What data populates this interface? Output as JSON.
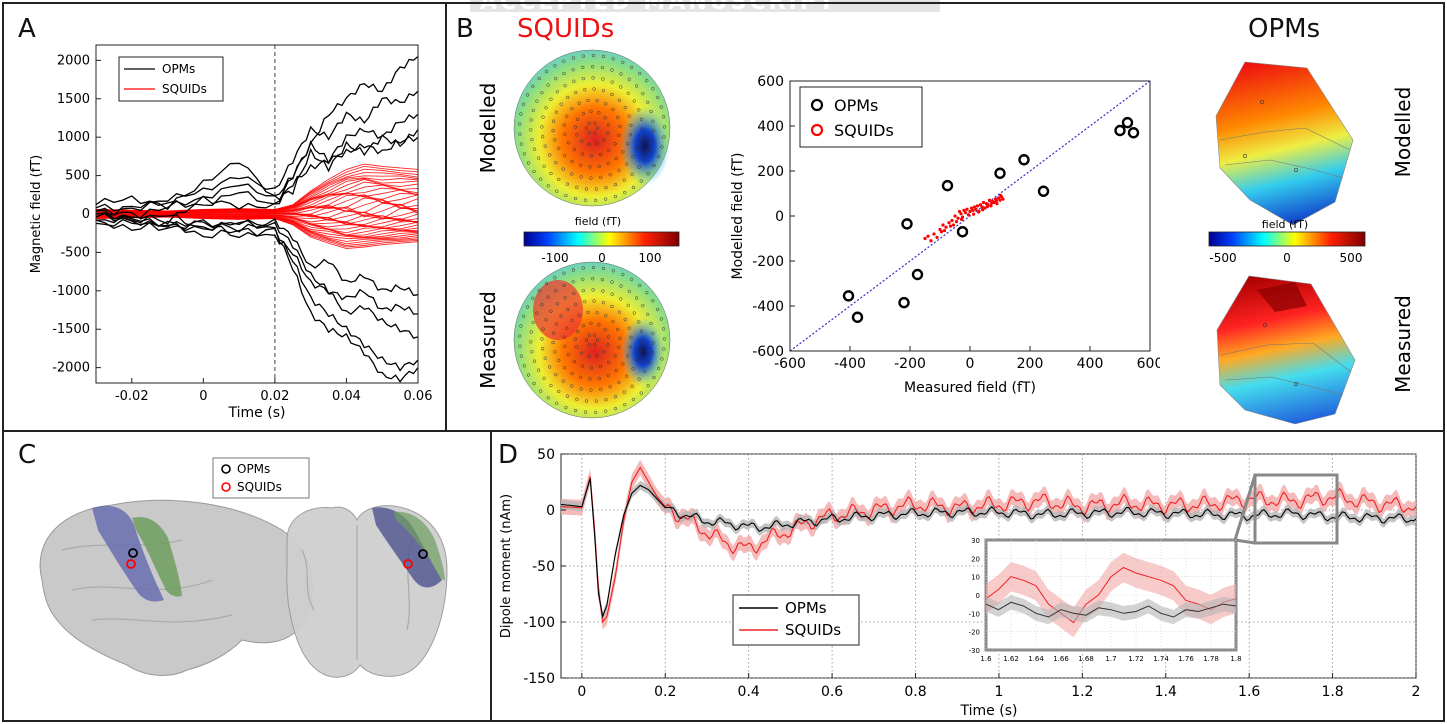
{
  "watermark": "ACCEPTED MANUSCRIPT",
  "panels": {
    "A": "A",
    "B": "B",
    "C": "C",
    "D": "D"
  },
  "colors": {
    "opm": "#000000",
    "squid": "#ff0000",
    "identity": "#2b2bd6",
    "ci_squid": "#f3a9a9",
    "ci_opm": "#b5b5b5"
  },
  "chart_data": [
    {
      "id": "A",
      "type": "line",
      "xlabel": "Time (s)",
      "ylabel": "Magnetic field (fT)",
      "xlim": [
        -0.03,
        0.06
      ],
      "ylim": [
        -2200,
        2200
      ],
      "xticks": [
        -0.02,
        0,
        0.02,
        0.04,
        0.06
      ],
      "xtick_labels": [
        "-0.02",
        "0",
        "0.02",
        "0.04",
        "0.06"
      ],
      "yticks": [
        -2000,
        -1500,
        -1000,
        -500,
        0,
        500,
        1000,
        1500,
        2000
      ],
      "ytick_labels": [
        "-2000",
        "-1500",
        "-1000",
        "-500",
        "0",
        "500",
        "1000",
        "1500",
        "2000"
      ],
      "vline_x": 0.02,
      "legend": {
        "placement": "top-left",
        "entries": [
          "OPMs",
          "SQUIDs"
        ]
      },
      "series": [
        {
          "name": "OPMs",
          "x": [
            -0.03,
            -0.02,
            -0.01,
            0,
            0.01,
            0.02,
            0.025,
            0.03,
            0.035,
            0.04,
            0.045,
            0.05,
            0.055,
            0.06
          ],
          "values": [
            [
              150,
              200,
              100,
              400,
              700,
              200,
              500,
              900,
              1300,
              1500,
              1700,
              1600,
              1900,
              2050
            ],
            [
              100,
              50,
              200,
              300,
              500,
              300,
              700,
              1100,
              1000,
              1300,
              1200,
              1500,
              1450,
              1600
            ],
            [
              50,
              0,
              -100,
              200,
              100,
              100,
              500,
              900,
              700,
              1000,
              1100,
              1000,
              1200,
              1300
            ],
            [
              0,
              -50,
              100,
              200,
              400,
              200,
              300,
              800,
              600,
              900,
              800,
              1000,
              900,
              1100
            ],
            [
              -50,
              100,
              150,
              100,
              300,
              100,
              400,
              600,
              700,
              800,
              900,
              800,
              950,
              1000
            ],
            [
              0,
              -100,
              -150,
              -100,
              -200,
              -100,
              -300,
              -700,
              -600,
              -900,
              -800,
              -1000,
              -950,
              -1050
            ],
            [
              -100,
              -200,
              -100,
              -300,
              -200,
              -300,
              -500,
              -900,
              -1000,
              -1300,
              -1200,
              -1400,
              -1500,
              -1600
            ],
            [
              -150,
              -100,
              -200,
              -100,
              -300,
              -200,
              -600,
              -1100,
              -1300,
              -1500,
              -1700,
              -1900,
              -2000,
              -1900
            ],
            [
              -100,
              -50,
              -150,
              -200,
              -100,
              -200,
              -700,
              -1300,
              -1500,
              -1600,
              -1800,
              -2100,
              -2150,
              -2000
            ],
            [
              50,
              -100,
              0,
              -200,
              -100,
              -150,
              -400,
              -800,
              -1000,
              -1100,
              -1000,
              -1250,
              -1200,
              -1300
            ]
          ]
        },
        {
          "name": "SQUIDs",
          "x": [
            -0.03,
            -0.02,
            -0.01,
            0,
            0.01,
            0.02,
            0.025,
            0.03,
            0.035,
            0.04,
            0.045,
            0.05,
            0.055,
            0.06
          ],
          "envelope": [
            [
              60,
              50,
              40,
              60,
              70,
              60,
              120,
              300,
              450,
              580,
              650,
              620,
              600,
              580
            ],
            [
              -60,
              -50,
              -40,
              -60,
              -70,
              -60,
              -140,
              -300,
              -380,
              -450,
              -430,
              -400,
              -380,
              -360
            ]
          ]
        }
      ]
    },
    {
      "id": "B-scatter",
      "type": "scatter",
      "xlabel": "Measured field (fT)",
      "ylabel": "Modelled field (fT)",
      "xlim": [
        -600,
        600
      ],
      "ylim": [
        -600,
        600
      ],
      "xticks": [
        -600,
        -400,
        -200,
        0,
        200,
        400,
        600
      ],
      "xtick_labels": [
        "-600",
        "-400",
        "-200",
        "0",
        "200",
        "400",
        "600"
      ],
      "yticks": [
        -600,
        -400,
        -200,
        0,
        200,
        400,
        600
      ],
      "ytick_labels": [
        "-600",
        "-400",
        "-200",
        "0",
        "200",
        "400",
        "600"
      ],
      "legend": {
        "placement": "top-left",
        "entries": [
          "OPMs",
          "SQUIDs"
        ]
      },
      "series": [
        {
          "name": "OPMs",
          "points": [
            [
              -405,
              -355
            ],
            [
              -375,
              -450
            ],
            [
              -220,
              -385
            ],
            [
              -210,
              -35
            ],
            [
              -175,
              -260
            ],
            [
              -75,
              135
            ],
            [
              -25,
              -70
            ],
            [
              100,
              190
            ],
            [
              180,
              250
            ],
            [
              245,
              110
            ],
            [
              500,
              380
            ],
            [
              525,
              415
            ],
            [
              545,
              370
            ]
          ]
        },
        {
          "name": "SQUIDs",
          "points": [
            [
              -150,
              -100
            ],
            [
              -120,
              -80
            ],
            [
              -100,
              -60
            ],
            [
              -90,
              -40
            ],
            [
              -80,
              -50
            ],
            [
              -70,
              -30
            ],
            [
              -60,
              -20
            ],
            [
              -55,
              -40
            ],
            [
              -50,
              0
            ],
            [
              -40,
              -10
            ],
            [
              -35,
              20
            ],
            [
              -30,
              10
            ],
            [
              -25,
              -5
            ],
            [
              -20,
              25
            ],
            [
              -15,
              15
            ],
            [
              -10,
              30
            ],
            [
              -5,
              5
            ],
            [
              0,
              20
            ],
            [
              5,
              35
            ],
            [
              10,
              25
            ],
            [
              15,
              40
            ],
            [
              20,
              30
            ],
            [
              25,
              45
            ],
            [
              30,
              20
            ],
            [
              35,
              50
            ],
            [
              40,
              40
            ],
            [
              45,
              60
            ],
            [
              50,
              35
            ],
            [
              55,
              55
            ],
            [
              60,
              50
            ],
            [
              65,
              70
            ],
            [
              70,
              45
            ],
            [
              75,
              65
            ],
            [
              80,
              60
            ],
            [
              85,
              75
            ],
            [
              90,
              55
            ],
            [
              95,
              80
            ],
            [
              100,
              70
            ],
            [
              105,
              85
            ],
            [
              110,
              75
            ],
            [
              -130,
              -110
            ],
            [
              -140,
              -90
            ],
            [
              -110,
              -95
            ],
            [
              -95,
              -70
            ],
            [
              -85,
              -65
            ],
            [
              -65,
              -45
            ],
            [
              -45,
              -25
            ],
            [
              -28,
              -15
            ],
            [
              12,
              8
            ],
            [
              28,
              18
            ],
            [
              42,
              28
            ],
            [
              58,
              42
            ],
            [
              72,
              58
            ],
            [
              88,
              68
            ],
            [
              102,
              92
            ]
          ]
        }
      ]
    },
    {
      "id": "D",
      "type": "line",
      "xlabel": "Time (s)",
      "ylabel": "Dipole moment (nAm)",
      "xlim": [
        -0.05,
        2.0
      ],
      "ylim": [
        -150,
        50
      ],
      "xticks": [
        0,
        0.2,
        0.4,
        0.6,
        0.8,
        1,
        1.2,
        1.4,
        1.6,
        1.8,
        2
      ],
      "xtick_labels": [
        "0",
        "0.2",
        "0.4",
        "0.6",
        "0.8",
        "1",
        "1.2",
        "1.4",
        "1.6",
        "1.8",
        "2"
      ],
      "yticks": [
        -150,
        -100,
        -50,
        0,
        50
      ],
      "ytick_labels": [
        "-150",
        "-100",
        "-50",
        "0",
        "50"
      ],
      "grid": true,
      "legend": {
        "placement": "bottom-center",
        "entries": [
          "OPMs",
          "SQUIDs"
        ]
      },
      "series": [
        {
          "name": "OPMs",
          "x": [
            -0.05,
            0,
            0.02,
            0.03,
            0.04,
            0.05,
            0.06,
            0.08,
            0.1,
            0.12,
            0.14,
            0.16,
            0.18,
            0.2,
            0.25,
            0.3,
            0.35,
            0.4,
            0.45,
            0.5,
            0.55,
            0.6,
            0.7,
            0.8,
            0.9,
            1.0,
            1.1,
            1.2,
            1.3,
            1.4,
            1.5,
            1.6,
            1.7,
            1.8,
            1.9,
            2.0
          ],
          "values": [
            5,
            3,
            28,
            -20,
            -75,
            -95,
            -85,
            -40,
            -5,
            15,
            22,
            18,
            10,
            2,
            -5,
            -10,
            -12,
            -15,
            -15,
            -12,
            -10,
            -8,
            -5,
            -3,
            -2,
            -2,
            -4,
            -3,
            -2,
            -3,
            -4,
            -5,
            -3,
            -6,
            -7,
            -8
          ]
        },
        {
          "name": "SQUIDs",
          "x": [
            -0.05,
            0,
            0.02,
            0.03,
            0.04,
            0.05,
            0.06,
            0.08,
            0.1,
            0.12,
            0.14,
            0.16,
            0.18,
            0.2,
            0.25,
            0.3,
            0.35,
            0.4,
            0.45,
            0.5,
            0.55,
            0.6,
            0.7,
            0.8,
            0.9,
            1.0,
            1.1,
            1.2,
            1.3,
            1.4,
            1.5,
            1.6,
            1.7,
            1.8,
            1.9,
            2.0
          ],
          "values": [
            3,
            2,
            30,
            -15,
            -70,
            -100,
            -95,
            -60,
            -10,
            25,
            38,
            25,
            12,
            3,
            -8,
            -20,
            -30,
            -35,
            -25,
            -18,
            -10,
            -5,
            0,
            5,
            2,
            5,
            8,
            3,
            6,
            4,
            5,
            10,
            8,
            12,
            6,
            3
          ]
        }
      ],
      "inset": {
        "xlim": [
          1.6,
          1.8
        ],
        "ylim": [
          -30,
          30
        ],
        "xticks": [
          1.6,
          1.62,
          1.64,
          1.66,
          1.68,
          1.7,
          1.72,
          1.74,
          1.76,
          1.78,
          1.8
        ],
        "xtick_labels": [
          "1.6",
          "1.62",
          "1.64",
          "1.66",
          "1.68",
          "1.7",
          "1.72",
          "1.74",
          "1.76",
          "1.78",
          "1.8"
        ],
        "yticks": [
          -30,
          -20,
          -10,
          0,
          10,
          20,
          30
        ],
        "ytick_labels": [
          "-30",
          "-20",
          "-10",
          "0",
          "10",
          "20",
          "30"
        ],
        "series": [
          {
            "name": "OPMs",
            "x": [
              1.6,
              1.61,
              1.62,
              1.63,
              1.64,
              1.65,
              1.66,
              1.67,
              1.68,
              1.69,
              1.7,
              1.71,
              1.72,
              1.73,
              1.74,
              1.75,
              1.76,
              1.77,
              1.78,
              1.79,
              1.8
            ],
            "values": [
              -5,
              -8,
              -4,
              -6,
              -10,
              -12,
              -8,
              -10,
              -11,
              -7,
              -8,
              -10,
              -9,
              -6,
              -10,
              -12,
              -8,
              -9,
              -7,
              -5,
              -6
            ]
          },
          {
            "name": "SQUIDs",
            "x": [
              1.6,
              1.61,
              1.62,
              1.63,
              1.64,
              1.65,
              1.66,
              1.67,
              1.68,
              1.69,
              1.7,
              1.71,
              1.72,
              1.73,
              1.74,
              1.75,
              1.76,
              1.77,
              1.78,
              1.79,
              1.8
            ],
            "values": [
              -2,
              3,
              10,
              8,
              5,
              -5,
              -10,
              -15,
              -5,
              0,
              10,
              15,
              12,
              10,
              8,
              5,
              -3,
              -5,
              -8,
              -4,
              -2
            ]
          }
        ]
      }
    }
  ],
  "topo": {
    "squids_title": "SQUIDs",
    "opms_title": "OPMs",
    "modelled": "Modelled",
    "measured": "Measured",
    "squid_cbar": {
      "label": "field (fT)",
      "ticks": [
        "-100",
        "0",
        "100"
      ]
    },
    "opm_cbar": {
      "label": "field (fT)",
      "ticks": [
        "-500",
        "0",
        "500"
      ]
    }
  },
  "brain": {
    "legend": [
      "OPMs",
      "SQUIDs"
    ]
  }
}
